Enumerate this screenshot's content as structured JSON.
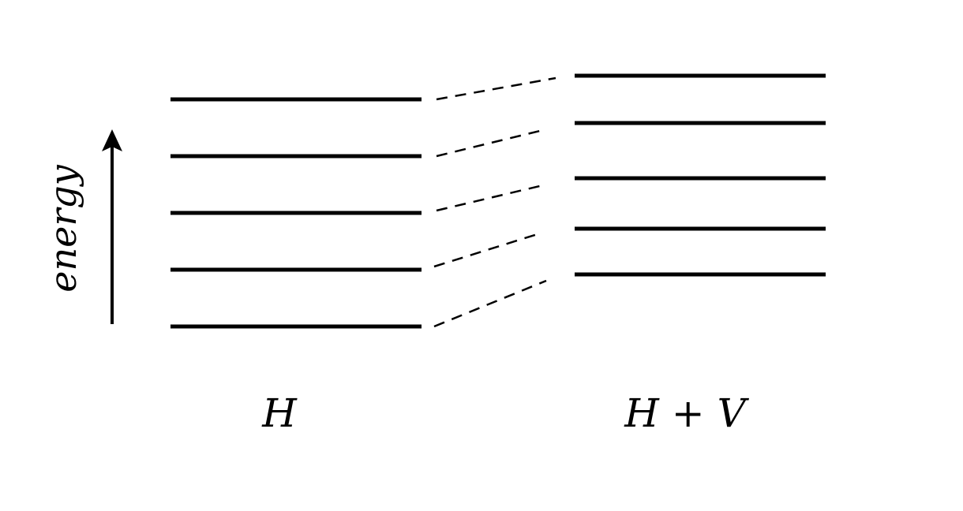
{
  "axis": {
    "label": "energy"
  },
  "columns": [
    {
      "label": "H"
    },
    {
      "label": "H + V"
    }
  ],
  "levels": {
    "unperturbed_count": 5,
    "perturbed_count": 5
  },
  "colors": {
    "line": "#000000",
    "background": "#ffffff"
  }
}
